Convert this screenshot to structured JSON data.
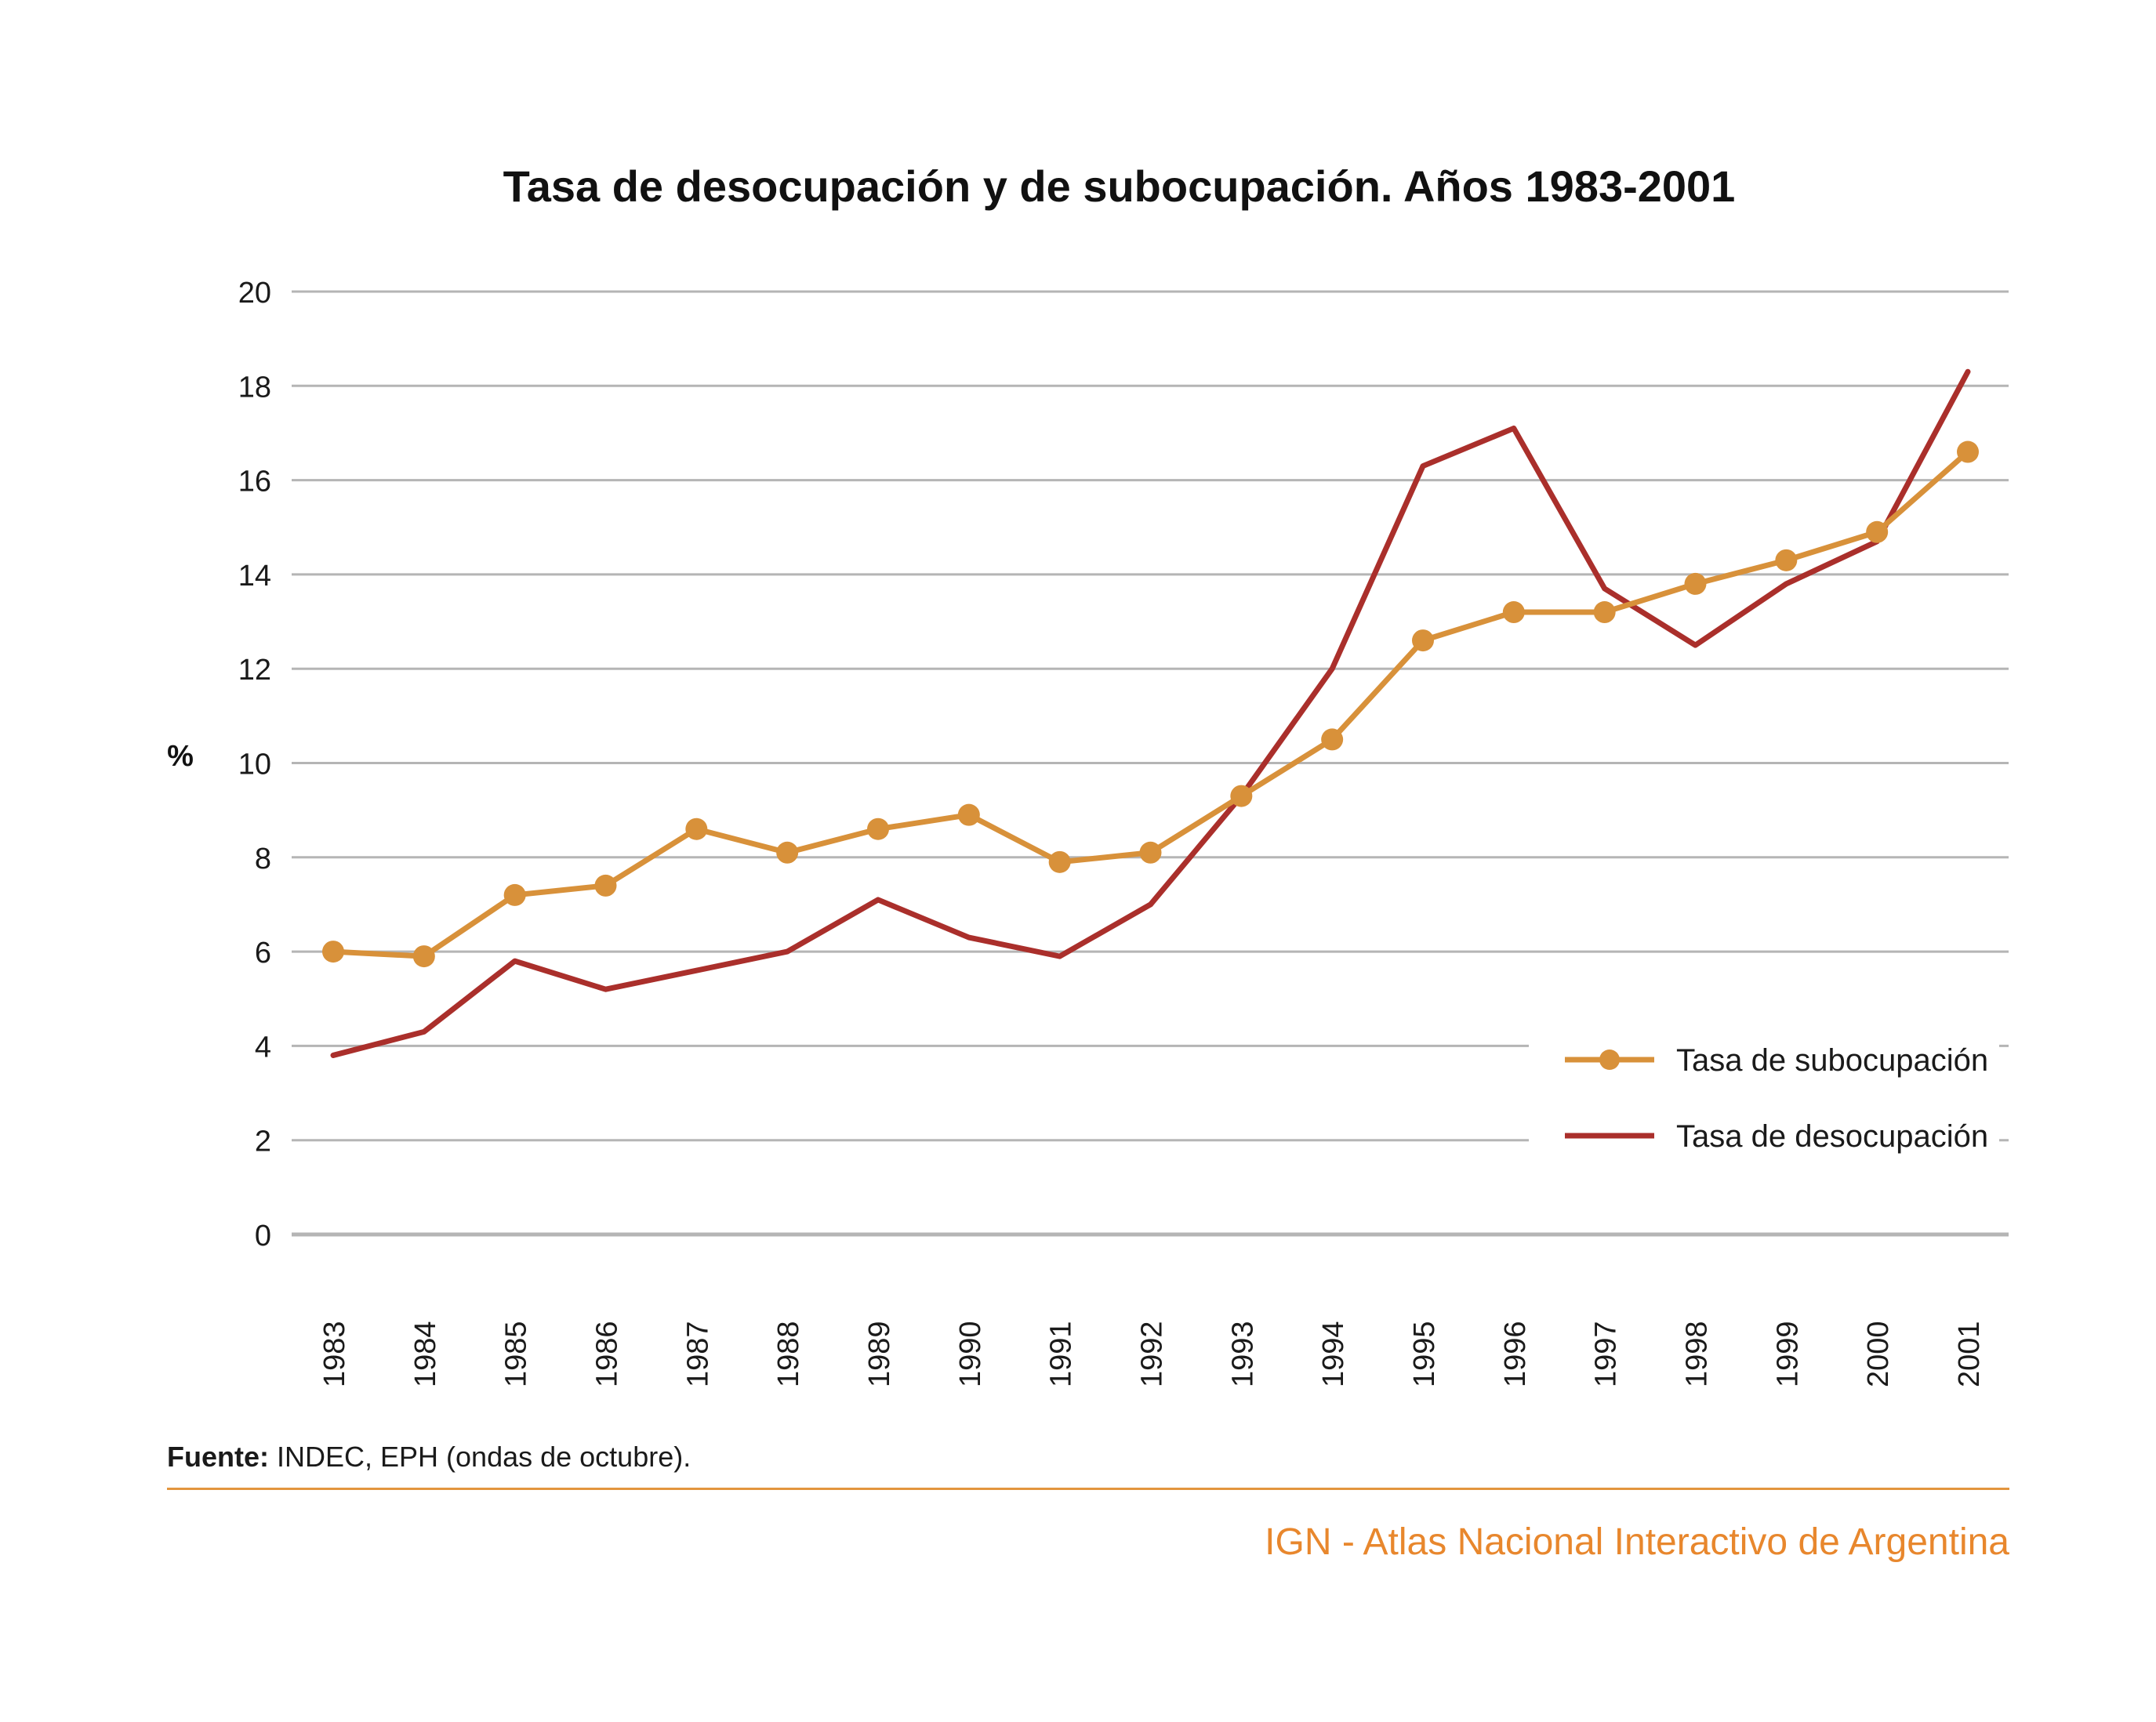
{
  "chart_data": {
    "type": "line",
    "title": "Tasa de desocupación y de subocupación. Años 1983-2001",
    "xlabel": "",
    "ylabel": "%",
    "ylim": [
      0,
      20
    ],
    "yticks": [
      0,
      2,
      4,
      6,
      8,
      10,
      12,
      14,
      16,
      18,
      20
    ],
    "grid": true,
    "legend_position": "bottom-right",
    "categories": [
      "1983",
      "1984",
      "1985",
      "1986",
      "1987",
      "1988",
      "1989",
      "1990",
      "1991",
      "1992",
      "1993",
      "1994",
      "1995",
      "1996",
      "1997",
      "1998",
      "1999",
      "2000",
      "2001"
    ],
    "series": [
      {
        "name": "Tasa de subocupación",
        "color": "#d8913a",
        "markers": true,
        "values": [
          6.0,
          5.9,
          7.2,
          7.4,
          8.6,
          8.1,
          8.6,
          8.9,
          7.9,
          8.1,
          9.3,
          10.5,
          12.6,
          13.2,
          13.2,
          13.8,
          14.3,
          14.9,
          16.6
        ]
      },
      {
        "name": "Tasa de desocupación",
        "color": "#aa2f2b",
        "markers": false,
        "values": [
          3.8,
          4.3,
          5.8,
          5.2,
          5.6,
          6.0,
          7.1,
          6.3,
          5.9,
          7.0,
          9.3,
          12.0,
          16.3,
          17.1,
          13.7,
          12.5,
          13.8,
          14.7,
          18.3
        ]
      }
    ]
  },
  "footer": {
    "source_label": "Fuente:",
    "source_text": " INDEC, EPH (ondas de octubre).",
    "brand": "IGN - Atlas Nacional Interactivo de Argentina"
  }
}
